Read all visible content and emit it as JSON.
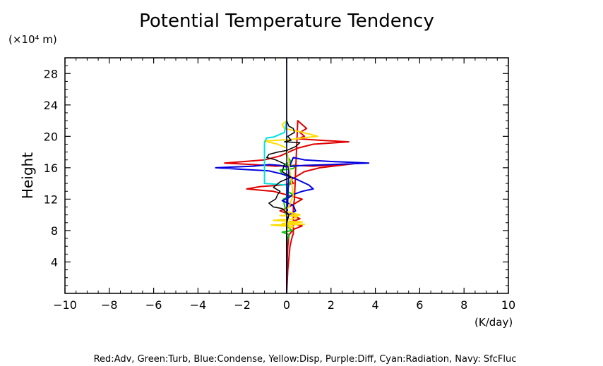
{
  "chart_data": {
    "type": "line",
    "title": "Potential Temperature Tendency",
    "xlabel": "(K/day)",
    "ylabel": "Height",
    "y_unit_label": "(×10⁴ m)",
    "xlim": [
      -10,
      10
    ],
    "ylim": [
      0,
      30
    ],
    "x_ticks": [
      -10,
      -8,
      -6,
      -4,
      -2,
      0,
      2,
      4,
      6,
      8,
      10
    ],
    "x_tick_labels": [
      "−10",
      "−8",
      "−6",
      "−4",
      "−2",
      "0",
      "2",
      "4",
      "6",
      "8",
      "10"
    ],
    "y_ticks": [
      4,
      8,
      12,
      16,
      20,
      24,
      28
    ],
    "y_tick_labels": [
      "4",
      "8",
      "12",
      "16",
      "20",
      "24",
      "28"
    ],
    "grid": false,
    "legend_text": "Red:Adv, Green:Turb, Blue:Condense, Yellow:Disp, Purple:Diff, Cyan:Radiation, Navy: SfcFluc",
    "colors": {
      "red": "#e00000",
      "green": "#00cc00",
      "blue": "#0000e0",
      "yellow": "#ffdd00",
      "purple": "#a020c0",
      "cyan": "#00e0e0",
      "navy": "#000080",
      "total": "#000000"
    },
    "series": [
      {
        "name": "Adv",
        "color": "#e00000",
        "x": [
          0,
          0.05,
          0.15,
          0.25,
          0.3,
          0.3,
          0.3,
          0.3,
          0.3,
          0.35,
          0.5,
          0.9,
          0.6,
          0.8,
          0.5,
          1.5,
          2.8,
          1.2,
          0.5,
          0.1,
          -0.3,
          -1.0,
          -2.8,
          -1.5,
          -0.5,
          0.3,
          1.2,
          3.0,
          1.5,
          0.8,
          0.5,
          0.2,
          0.3,
          -0.2,
          -1.2,
          -1.8,
          -0.6,
          0.2,
          0.7,
          0.4,
          0.1,
          -0.3,
          0.2,
          0.6,
          0.3,
          0.15,
          0.7,
          0.35,
          0.2,
          0.1,
          0.05,
          0.02,
          0
        ],
        "y": [
          0,
          3,
          6,
          7.2,
          7.6,
          8.0,
          9.0,
          10.0,
          11.0,
          12.0,
          22.0,
          21.0,
          20.5,
          20.0,
          19.7,
          19.5,
          19.3,
          19.0,
          18.5,
          18.0,
          17.5,
          17.0,
          16.6,
          16.4,
          16.2,
          16.3,
          16.2,
          16.5,
          16.0,
          15.5,
          15.0,
          14.5,
          14.0,
          13.8,
          13.6,
          13.3,
          13.0,
          12.4,
          12.0,
          11.5,
          11.0,
          10.5,
          10.0,
          9.5,
          9.2,
          9.0,
          8.6,
          8.2,
          7.8,
          7.4,
          6.0,
          4.0,
          0.5
        ]
      },
      {
        "name": "Turb",
        "color": "#00cc00",
        "x": [
          0,
          0.1,
          -0.2,
          0.25,
          0.1,
          -0.15,
          0.3,
          0,
          0.2,
          0.15,
          -0.2,
          -0.3,
          0.3,
          0.4,
          -0.1,
          0.2,
          0,
          0
        ],
        "y": [
          6.5,
          7.5,
          7.8,
          8.0,
          8.3,
          12.0,
          12.6,
          13.0,
          14.5,
          15.0,
          15.2,
          15.7,
          15.9,
          16.2,
          16.4,
          16.8,
          17.5,
          20.0
        ]
      },
      {
        "name": "Condense",
        "color": "#0000e0",
        "x": [
          0,
          0,
          0.1,
          0.3,
          0.8,
          2.0,
          3.7,
          2.0,
          0.8,
          0.3,
          0,
          -0.3,
          -0.8,
          -1.5,
          -3.2,
          -2.0,
          -0.8,
          -0.2,
          0.4,
          1.0,
          1.2,
          0.7,
          0.3,
          0.1,
          -0.2,
          0.3,
          0.4,
          0.1,
          0,
          0
        ],
        "y": [
          0,
          8.0,
          16.0,
          17.3,
          17.0,
          16.8,
          16.6,
          16.4,
          16.3,
          16.2,
          16.1,
          16.3,
          16.4,
          16.2,
          16.0,
          15.8,
          15.6,
          15.2,
          14.6,
          13.8,
          13.3,
          13.0,
          12.6,
          12.2,
          11.8,
          11.2,
          10.5,
          10.0,
          9.0,
          0
        ]
      },
      {
        "name": "Disp",
        "color": "#ffdd00",
        "x": [
          0,
          -0.2,
          -0.1,
          0.6,
          1.0,
          1.4,
          0.7,
          0.2,
          -1.0,
          -0.4,
          0,
          0.3,
          0.1,
          -0.1,
          0.6,
          -0.3,
          0.5,
          0.3,
          -0.6,
          0.7,
          -0.2,
          0.8,
          -0.7,
          0.3,
          0,
          0
        ],
        "y": [
          22.0,
          21.5,
          21.0,
          20.6,
          20.3,
          20.0,
          19.8,
          19.6,
          19.4,
          19.0,
          18.5,
          12.5,
          11.0,
          10.5,
          10.0,
          9.9,
          9.8,
          9.5,
          9.3,
          9.1,
          8.9,
          8.8,
          8.7,
          8.5,
          8.2,
          7.5
        ]
      },
      {
        "name": "Radiation",
        "color": "#00e0e0",
        "x": [
          0,
          -0.1,
          -0.6,
          -0.9,
          -1.0,
          -1.0,
          -1.0,
          -1.0,
          -1.0,
          -1.0,
          -0.5,
          0,
          0
        ],
        "y": [
          22.0,
          20.5,
          19.9,
          19.8,
          19.2,
          18.0,
          17.0,
          16.0,
          15.0,
          14.0,
          13.9,
          13.8,
          12.0
        ]
      },
      {
        "name": "SfcFluc",
        "color": "#000080",
        "x": [
          0,
          0
        ],
        "y": [
          0,
          30
        ]
      },
      {
        "name": "Total",
        "color": "#000000",
        "x": [
          0,
          0,
          0.1,
          0.3,
          0.35,
          0.05,
          0.2,
          -0.1,
          0.6,
          0.4,
          0,
          -0.4,
          -0.8,
          -0.9,
          -0.5,
          -0.1,
          -0.2,
          0.2,
          -0.3,
          -0.6,
          -0.3,
          -0.4,
          -0.5,
          -0.8,
          -0.6,
          -0.2,
          0.1,
          0,
          0
        ],
        "y": [
          30,
          22.0,
          21.3,
          21.0,
          20.5,
          20.0,
          19.5,
          19.3,
          19.2,
          18.7,
          18.2,
          18.0,
          17.7,
          17.3,
          17.0,
          16.5,
          15.5,
          14.8,
          14.2,
          13.5,
          13.0,
          12.6,
          12.0,
          11.5,
          11.0,
          10.8,
          10.0,
          9.0,
          0
        ]
      }
    ]
  }
}
